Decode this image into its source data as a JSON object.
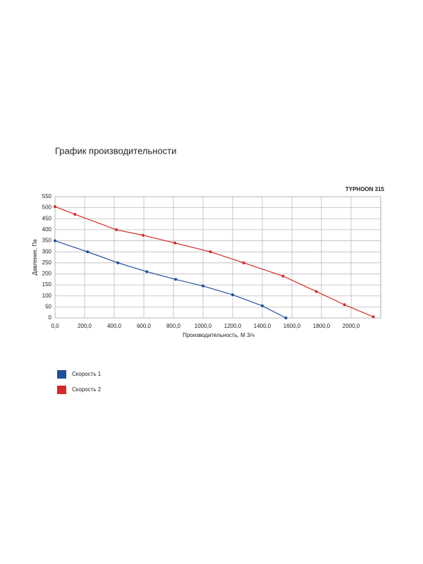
{
  "chart_data": {
    "type": "line",
    "title": "График производительности",
    "model": "TYPHOON 315",
    "x_label": "Производительность, М 3/ч",
    "y_label": "Давление, Па",
    "xlim": [
      0,
      2200
    ],
    "ylim": [
      0,
      550
    ],
    "xticks": [
      {
        "value": 0,
        "label": "0,0"
      },
      {
        "value": 200,
        "label": "200,0"
      },
      {
        "value": 400,
        "label": "400,0"
      },
      {
        "value": 600,
        "label": "600,0"
      },
      {
        "value": 800,
        "label": "800,0"
      },
      {
        "value": 1000,
        "label": "1000,0"
      },
      {
        "value": 1200,
        "label": "1200,0"
      },
      {
        "value": 1400,
        "label": "1400,0"
      },
      {
        "value": 1600,
        "label": "1600,0"
      },
      {
        "value": 1800,
        "label": "1800,0"
      },
      {
        "value": 2000,
        "label": "2000,0"
      }
    ],
    "yticks": [
      0,
      50,
      100,
      150,
      200,
      250,
      300,
      350,
      400,
      450,
      500,
      550
    ],
    "grid": true,
    "series": [
      {
        "name": "Скорость 1",
        "color": "#1f4e9c",
        "x": [
          0,
          220,
          425,
          620,
          815,
          1000,
          1200,
          1400,
          1560
        ],
        "values": [
          350,
          300,
          250,
          210,
          175,
          145,
          105,
          55,
          0
        ]
      },
      {
        "name": "Скорость 2",
        "color": "#d42a2a",
        "x": [
          0,
          135,
          415,
          595,
          810,
          1050,
          1275,
          1540,
          1765,
          1955,
          2150
        ],
        "values": [
          505,
          470,
          400,
          375,
          340,
          300,
          250,
          190,
          120,
          60,
          5
        ]
      }
    ]
  }
}
